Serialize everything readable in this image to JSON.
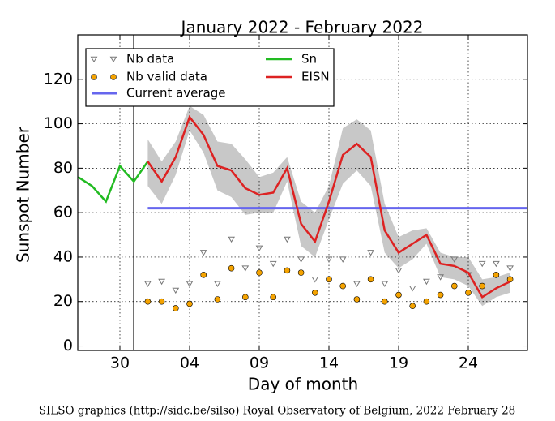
{
  "chart_data": {
    "type": "line",
    "title": "January 2022 - February 2022",
    "xlabel": "Day of month",
    "ylabel": "Sunspot Number",
    "footer": "SILSO graphics (http://sidc.be/silso) Royal Observatory of Belgium, 2022 February 28",
    "categories": [
      null,
      null,
      null,
      "30",
      null,
      null,
      null,
      null,
      "04",
      null,
      null,
      null,
      null,
      "09",
      null,
      null,
      null,
      null,
      "14",
      null,
      null,
      null,
      null,
      "19",
      null,
      null,
      null,
      null,
      "24",
      null,
      null,
      null,
      null
    ],
    "ylim": [
      -2,
      140
    ],
    "yticks": [
      0,
      20,
      40,
      60,
      80,
      100,
      120
    ],
    "grid": true,
    "legend": "upper left",
    "band": {
      "color": "#c8c8c8",
      "upper": [
        null,
        null,
        null,
        null,
        null,
        93,
        83,
        92,
        108,
        104,
        92,
        91,
        84,
        76,
        78,
        85,
        65,
        60,
        72,
        98,
        102,
        97,
        64,
        49,
        52,
        53,
        42,
        40,
        40,
        30,
        31,
        33,
        null
      ],
      "lower": [
        null,
        null,
        null,
        null,
        null,
        72,
        64,
        77,
        97,
        87,
        70,
        67,
        59,
        60,
        60,
        74,
        45,
        40,
        57,
        73,
        79,
        72,
        42,
        35,
        39,
        46,
        31,
        30,
        27,
        18,
        22,
        24,
        null
      ]
    },
    "series": [
      {
        "name": "Nb data",
        "kind": "triangle",
        "color": "#777777",
        "values": [
          null,
          null,
          null,
          null,
          null,
          28,
          29,
          25,
          28,
          42,
          28,
          48,
          35,
          44,
          37,
          48,
          39,
          30,
          39,
          39,
          28,
          42,
          28,
          34,
          26,
          29,
          31,
          39,
          32,
          37,
          37,
          35,
          null
        ]
      },
      {
        "name": "Nb valid data",
        "kind": "circle",
        "color": "#f5a300",
        "values": [
          null,
          null,
          null,
          null,
          null,
          20,
          20,
          17,
          19,
          32,
          21,
          35,
          22,
          33,
          22,
          34,
          33,
          24,
          30,
          27,
          21,
          30,
          20,
          23,
          18,
          20,
          23,
          27,
          24,
          27,
          32,
          30,
          null
        ]
      },
      {
        "name": "Sn",
        "kind": "line",
        "color": "#22bb22",
        "values": [
          76,
          72,
          65,
          81,
          74,
          83,
          null,
          null,
          null,
          null,
          null,
          null,
          null,
          null,
          null,
          null,
          null,
          null,
          null,
          null,
          null,
          null,
          null,
          null,
          null,
          null,
          null,
          null,
          null,
          null,
          null,
          null,
          null
        ]
      },
      {
        "name": "EISN",
        "kind": "line",
        "color": "#dd2222",
        "values": [
          null,
          null,
          null,
          null,
          null,
          83,
          74,
          85,
          103,
          95,
          81,
          79,
          71,
          68,
          69,
          80,
          55,
          47,
          65,
          86,
          91,
          85,
          52,
          42,
          46,
          50,
          37,
          36,
          33,
          22,
          26,
          29,
          null
        ]
      }
    ],
    "current_average": {
      "name": "Current average",
      "color": "#6666ee",
      "value": 62
    }
  }
}
